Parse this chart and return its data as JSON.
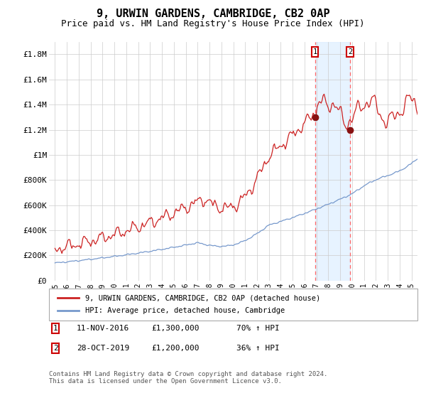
{
  "title": "9, URWIN GARDENS, CAMBRIDGE, CB2 0AP",
  "subtitle": "Price paid vs. HM Land Registry's House Price Index (HPI)",
  "title_fontsize": 11,
  "subtitle_fontsize": 9,
  "xlim": [
    1994.5,
    2025.5
  ],
  "ylim": [
    0,
    1900000
  ],
  "yticks": [
    0,
    200000,
    400000,
    600000,
    800000,
    1000000,
    1200000,
    1400000,
    1600000,
    1800000
  ],
  "ytick_labels": [
    "£0",
    "£200K",
    "£400K",
    "£600K",
    "£800K",
    "£1M",
    "£1.2M",
    "£1.4M",
    "£1.6M",
    "£1.8M"
  ],
  "xtick_years": [
    1995,
    1996,
    1997,
    1998,
    1999,
    2000,
    2001,
    2002,
    2003,
    2004,
    2005,
    2006,
    2007,
    2008,
    2009,
    2010,
    2011,
    2012,
    2013,
    2014,
    2015,
    2016,
    2017,
    2018,
    2019,
    2020,
    2021,
    2022,
    2023,
    2024,
    2025
  ],
  "hpi_color": "#7799cc",
  "price_color": "#cc2222",
  "marker_color": "#881111",
  "shade_color": "#ddeeff",
  "dashed_color": "#ff6666",
  "purchase1_x": 2016.87,
  "purchase1_y": 1300000,
  "purchase1_label": "1",
  "purchase2_x": 2019.83,
  "purchase2_y": 1200000,
  "purchase2_label": "2",
  "legend_line1": "9, URWIN GARDENS, CAMBRIDGE, CB2 0AP (detached house)",
  "legend_line2": "HPI: Average price, detached house, Cambridge",
  "annotation1_date": "11-NOV-2016",
  "annotation1_price": "£1,300,000",
  "annotation1_hpi": "70% ↑ HPI",
  "annotation2_date": "28-OCT-2019",
  "annotation2_price": "£1,200,000",
  "annotation2_hpi": "36% ↑ HPI",
  "footnote": "Contains HM Land Registry data © Crown copyright and database right 2024.\nThis data is licensed under the Open Government Licence v3.0.",
  "background_color": "#ffffff",
  "grid_color": "#cccccc"
}
